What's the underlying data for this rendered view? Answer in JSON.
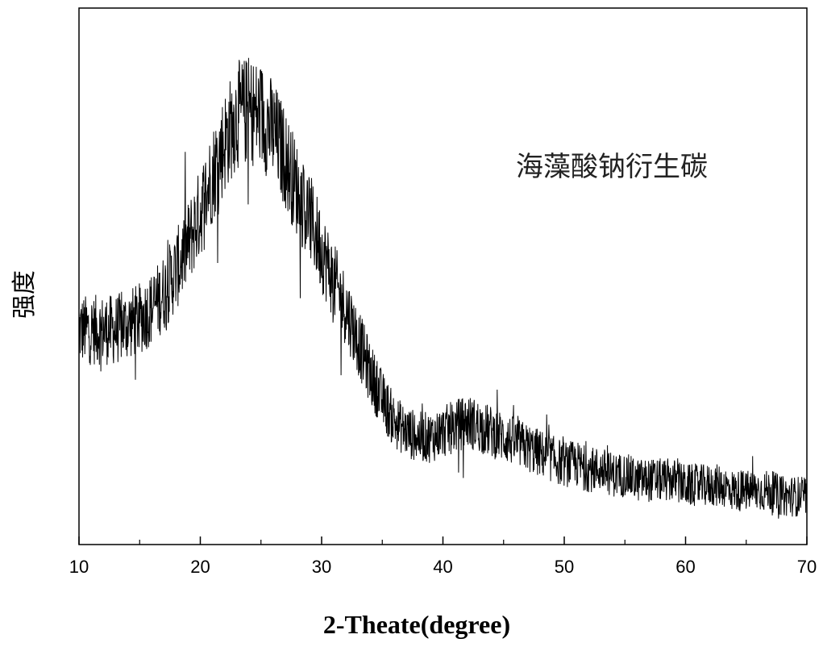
{
  "chart_data": {
    "type": "line",
    "xlabel": "2-Theate(degree)",
    "ylabel": "强度",
    "xlim": [
      10,
      70
    ],
    "ylim": [
      0,
      100
    ],
    "xticks": [
      "10",
      "20",
      "30",
      "40",
      "50",
      "60",
      "70"
    ],
    "yticks": [],
    "grid": false,
    "legend_position": "top-right",
    "series": [
      {
        "name": "海藻酸钠衍生碳",
        "color": "#000000",
        "x": [
          10,
          11,
          12,
          13,
          14,
          15,
          16,
          17,
          18,
          19,
          20,
          21,
          22,
          23,
          24,
          25,
          26,
          27,
          28,
          29,
          30,
          31,
          32,
          33,
          34,
          35,
          36,
          37,
          38,
          39,
          40,
          41,
          42,
          43,
          44,
          45,
          46,
          47,
          48,
          49,
          50,
          51,
          52,
          53,
          54,
          55,
          56,
          57,
          58,
          59,
          60,
          61,
          62,
          63,
          64,
          65,
          66,
          67,
          68,
          69,
          70
        ],
        "y": [
          40,
          40,
          40,
          40,
          41,
          42,
          44,
          47,
          51,
          56,
          62,
          69,
          75,
          80,
          81,
          80,
          77,
          72,
          66,
          61,
          55,
          49,
          44,
          38,
          32,
          27,
          23,
          21,
          20,
          20,
          21,
          22,
          23,
          22,
          21,
          20,
          19,
          18,
          17,
          16,
          15,
          15,
          14,
          14,
          13,
          13,
          12,
          12,
          12,
          12,
          11,
          11,
          11,
          11,
          10,
          10,
          10,
          10,
          9,
          9,
          9
        ]
      }
    ]
  }
}
